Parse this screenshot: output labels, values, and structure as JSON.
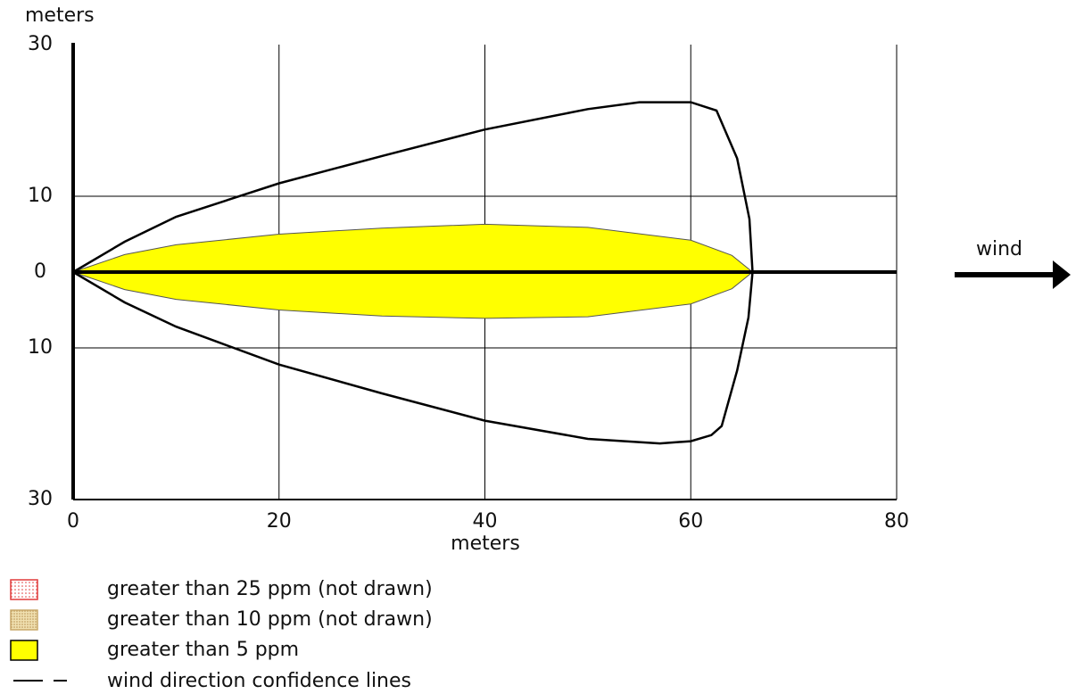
{
  "chart_data": {
    "type": "threat-zone",
    "ylabel": "meters",
    "xlabel": "meters",
    "annotation": "wind",
    "xlim": [
      0,
      80
    ],
    "xticks": [
      0,
      20,
      40,
      60,
      80
    ],
    "ylim": [
      -30,
      30
    ],
    "yticks": [
      30,
      10,
      0,
      {
        "value": -10,
        "label": "10"
      },
      {
        "value": -30,
        "label": "30"
      }
    ],
    "grid": true,
    "series": [
      {
        "name": "greater than 25 ppm (not drawn)",
        "color": "#e03a3a",
        "x": [],
        "y": []
      },
      {
        "name": "greater than 10 ppm (not drawn)",
        "color": "#c9a86a",
        "x": [],
        "y": []
      },
      {
        "name": "greater than 5 ppm",
        "color": "#ffff00",
        "x": [
          0,
          5,
          10,
          20,
          30,
          40,
          50,
          60,
          64,
          66,
          64,
          60,
          50,
          40,
          30,
          20,
          10,
          5,
          0
        ],
        "y": [
          0,
          2.3,
          3.6,
          5,
          5.8,
          6.3,
          5.9,
          4.2,
          2.2,
          0,
          -2.2,
          -4.2,
          -5.9,
          -6.1,
          -5.8,
          -5,
          -3.6,
          -2.3,
          0
        ]
      },
      {
        "name": "wind direction confidence lines",
        "color": "#000000",
        "x": [
          0,
          5,
          10,
          20,
          30,
          40,
          50,
          55,
          60,
          62.5,
          64.5,
          65.7,
          66,
          65.6,
          64.5,
          63,
          62,
          60,
          57,
          50,
          40,
          30,
          20,
          10,
          5,
          0
        ],
        "y": [
          0,
          4,
          7.3,
          11.7,
          15.3,
          18.8,
          21.5,
          22.4,
          22.4,
          21.3,
          15,
          7,
          0,
          -6,
          -13,
          -20.3,
          -21.5,
          -22.3,
          -22.6,
          -22,
          -19.6,
          -16,
          -12.2,
          -7.2,
          -4,
          0
        ]
      }
    ]
  }
}
